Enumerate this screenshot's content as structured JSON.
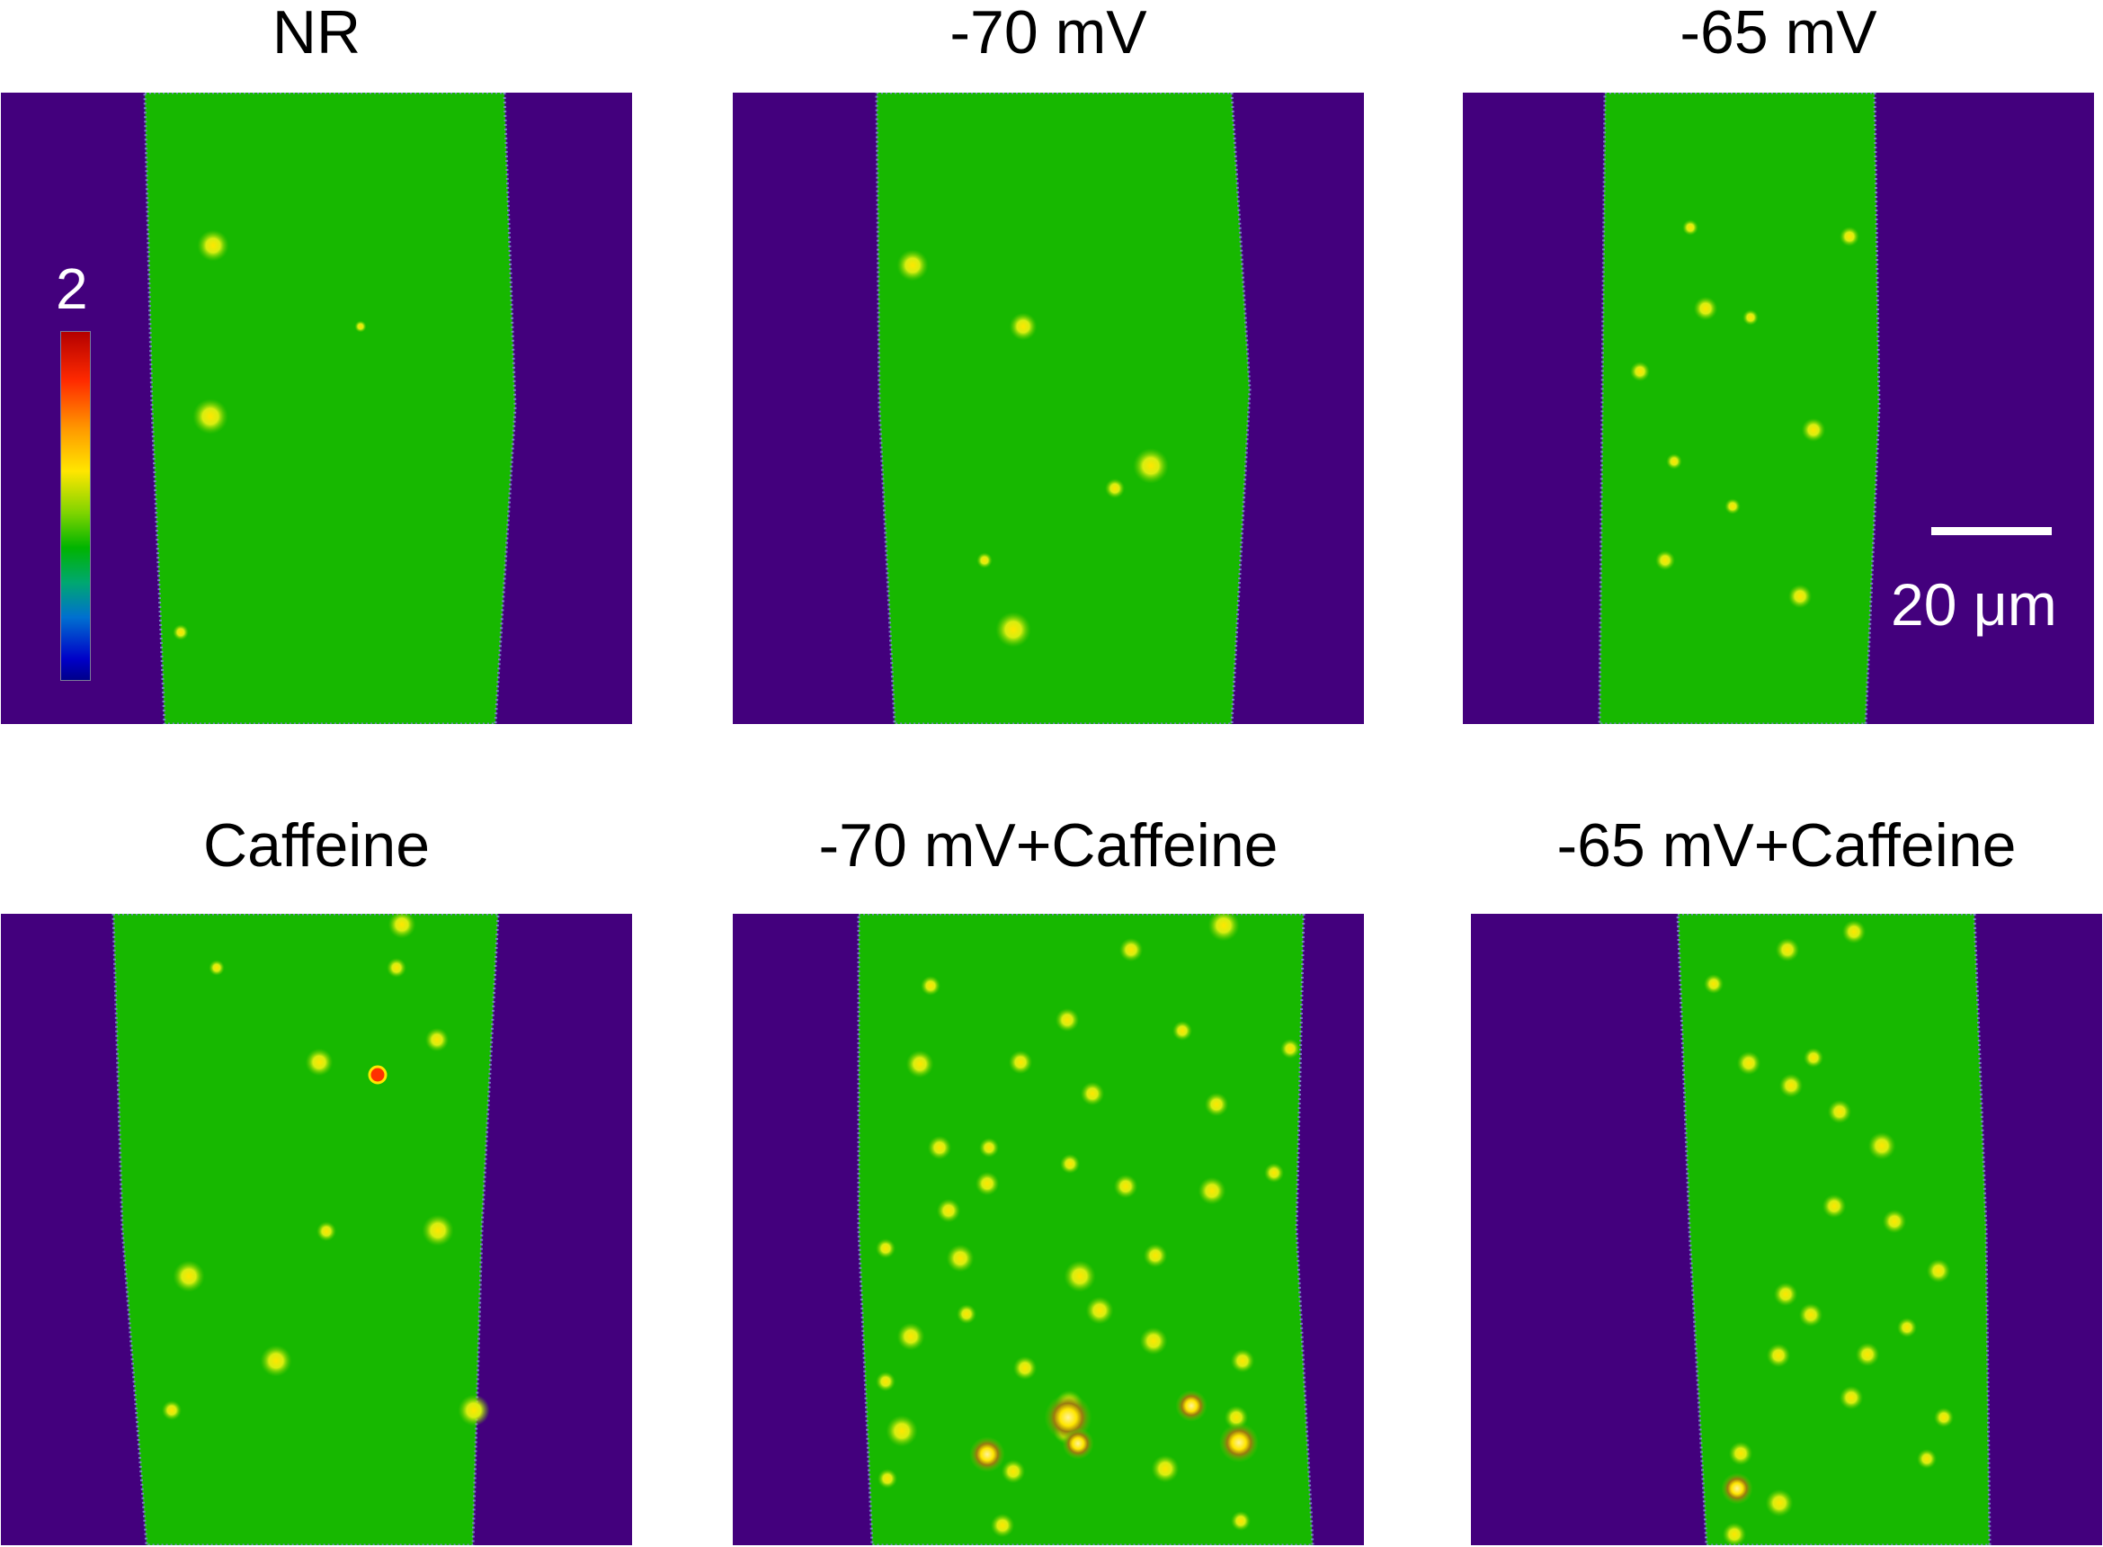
{
  "panels": [
    {
      "title": "NR"
    },
    {
      "title": "-70 mV"
    },
    {
      "title": "-65 mV"
    },
    {
      "title": "Caffeine"
    },
    {
      "title": "-70 mV+Caffeine"
    },
    {
      "title": "-65 mV+Caffeine"
    }
  ],
  "colorbar": {
    "max_label": "2"
  },
  "scale_bar": {
    "label": "20 μm"
  },
  "colors": {
    "background": "#43007d",
    "cell": "#17b800",
    "spark": "#ffe600",
    "spark_hot": "#ff3000"
  }
}
